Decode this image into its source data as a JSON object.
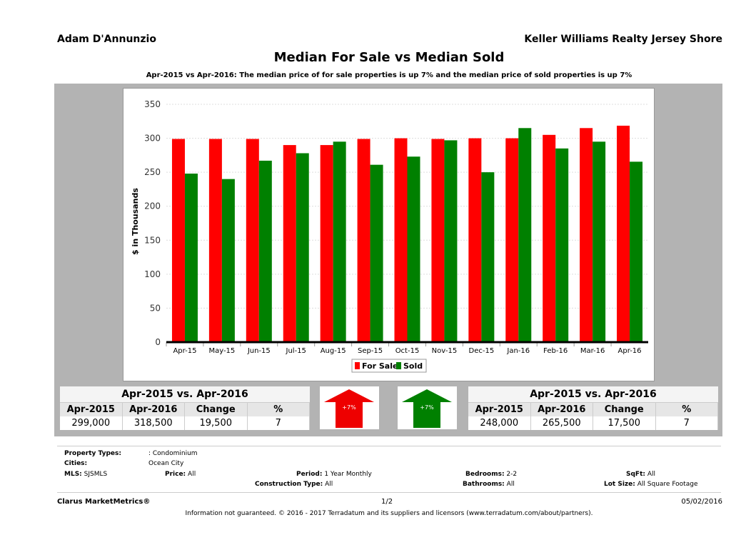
{
  "header": {
    "agent": "Adam D'Annunzio",
    "broker": "Keller Williams Realty Jersey Shore",
    "title": "Median For Sale vs Median Sold",
    "subtitle": "Apr-2015 vs Apr-2016: The median price of for sale properties is up 7% and the median price of sold properties is up 7%"
  },
  "chart_data": {
    "type": "bar",
    "ylabel": "$ in Thousands",
    "ylim": [
      0,
      350
    ],
    "yticks": [
      0,
      50,
      100,
      150,
      200,
      250,
      300,
      350
    ],
    "grid": true,
    "legend_position": "bottom",
    "categories": [
      "Apr-15",
      "May-15",
      "Jun-15",
      "Jul-15",
      "Aug-15",
      "Sep-15",
      "Oct-15",
      "Nov-15",
      "Dec-15",
      "Jan-16",
      "Feb-16",
      "Mar-16",
      "Apr-16"
    ],
    "series": [
      {
        "name": "For Sale",
        "color": "#ff0000",
        "values": [
          299,
          299,
          299,
          290,
          290,
          299,
          300,
          299,
          300,
          300,
          305,
          315,
          318.5
        ]
      },
      {
        "name": "Sold",
        "color": "#008000",
        "values": [
          248,
          240,
          267,
          278,
          295,
          261,
          273,
          297,
          250,
          315,
          285,
          295,
          265.5
        ]
      }
    ]
  },
  "for_sale_table": {
    "title": "Apr-2015 vs. Apr-2016",
    "headers": [
      "Apr-2015",
      "Apr-2016",
      "Change",
      "%"
    ],
    "values": [
      "299,000",
      "318,500",
      "19,500",
      "7"
    ],
    "arrow": "+7%",
    "color": "#ee0000"
  },
  "sold_table": {
    "title": "Apr-2015 vs. Apr-2016",
    "headers": [
      "Apr-2015",
      "Apr-2016",
      "Change",
      "%"
    ],
    "values": [
      "248,000",
      "265,500",
      "17,500",
      "7"
    ],
    "arrow": "+7%",
    "color": "#008000"
  },
  "info": {
    "property_types_label": "Property Types:",
    "property_types": ": Condominium",
    "cities_label": "Cities:",
    "cities": "Ocean City",
    "mls_label": "MLS:",
    "mls": "SJSMLS",
    "price_label": "Price:",
    "price": "All",
    "period_label": "Period:",
    "period": "1 Year Monthly",
    "bedrooms_label": "Bedrooms:",
    "bedrooms": "2-2",
    "sqft_label": "SqFt:",
    "sqft": "All",
    "construction_label": "Construction Type:",
    "construction": "All",
    "bathrooms_label": "Bathrooms:",
    "bathrooms": "All",
    "lot_label": "Lot Size:",
    "lot": "All Square Footage"
  },
  "footer": {
    "brand": "Clarus MarketMetrics®",
    "page": "1/2",
    "date": "05/02/2016",
    "disclaimer": "Information not guaranteed. © 2016 - 2017 Terradatum and its suppliers and licensors (www.terradatum.com/about/partners)."
  }
}
